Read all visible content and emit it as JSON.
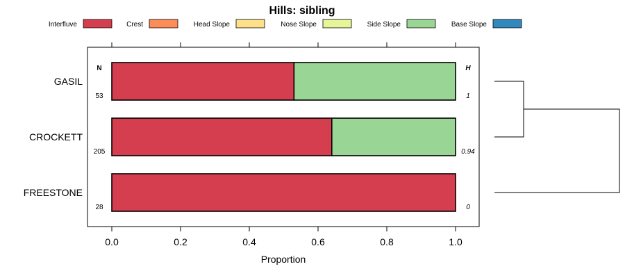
{
  "chart_data": {
    "type": "bar",
    "orientation": "horizontal",
    "stacked": true,
    "title": "Hills: sibling",
    "xlabel": "Proportion",
    "ylabel": "",
    "xlim": [
      0,
      1
    ],
    "x_ticks": [
      "0.0",
      "0.2",
      "0.4",
      "0.6",
      "0.8",
      "1.0"
    ],
    "legend_position": "top",
    "col_header_n": "N",
    "col_header_h": "H",
    "categories": [
      "GASIL",
      "CROCKETT",
      "FREESTONE"
    ],
    "n_values": [
      "53",
      "205",
      "28"
    ],
    "h_values": [
      "1",
      "0.94",
      "0"
    ],
    "series": [
      {
        "name": "Interfluve",
        "color": "#D53E4F",
        "values": [
          0.53,
          0.64,
          1.0
        ]
      },
      {
        "name": "Crest",
        "color": "#FC8D59",
        "values": [
          0,
          0,
          0
        ]
      },
      {
        "name": "Head Slope",
        "color": "#FEE08B",
        "values": [
          0,
          0,
          0
        ]
      },
      {
        "name": "Nose Slope",
        "color": "#E6F598",
        "values": [
          0,
          0,
          0
        ]
      },
      {
        "name": "Side Slope",
        "color": "#99D594",
        "values": [
          0.47,
          0.36,
          0
        ]
      },
      {
        "name": "Base Slope",
        "color": "#3288BD",
        "values": [
          0,
          0,
          0
        ]
      }
    ],
    "dendrogram": "GASIL and CROCKETT cluster first, then join FREESTONE"
  }
}
